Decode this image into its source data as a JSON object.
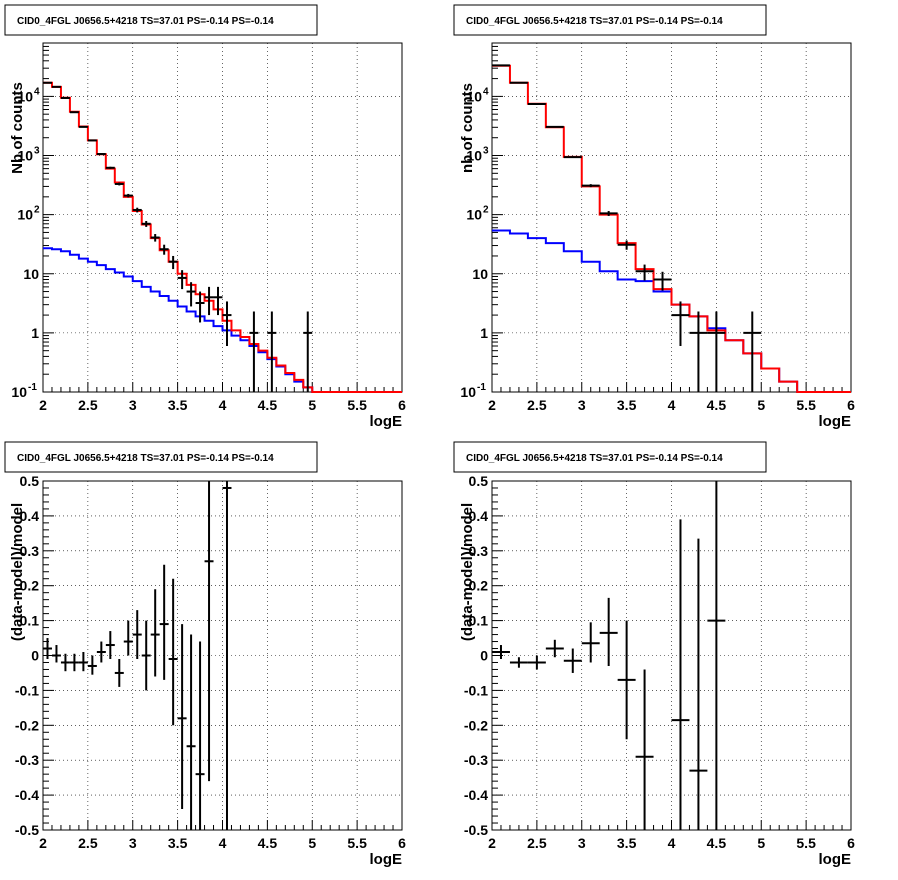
{
  "chart_data": [
    {
      "type": "line",
      "title": "CID0_4FGL J0656.5+4218 TS=37.01 PS=-0.14 PS=-0.14",
      "xlabel": "logE",
      "ylabel": "Nb of counts",
      "log_y": true,
      "xlim": [
        2,
        6
      ],
      "ylim": [
        0.1,
        80000
      ],
      "grid": true,
      "x_ticks": [
        "2",
        "2.5",
        "3",
        "3.5",
        "4",
        "4.5",
        "5",
        "5.5",
        "6"
      ],
      "y_ticks": [
        {
          "value": 0.1,
          "label": "10",
          "sup": "-1"
        },
        {
          "value": 1,
          "label": "1",
          "sup": ""
        },
        {
          "value": 10,
          "label": "10",
          "sup": ""
        },
        {
          "value": 100,
          "label": "10",
          "sup": "2"
        },
        {
          "value": 1000,
          "label": "10",
          "sup": "3"
        },
        {
          "value": 10000,
          "label": "10",
          "sup": "4"
        }
      ],
      "bin_edges": [
        2.0,
        2.1,
        2.2,
        2.3,
        2.4,
        2.5,
        2.6,
        2.7,
        2.8,
        2.9,
        3.0,
        3.1,
        3.2,
        3.3,
        3.4,
        3.5,
        3.6,
        3.7,
        3.8,
        3.9,
        4.0,
        4.1,
        4.2,
        4.3,
        4.4,
        4.5,
        4.6,
        4.7,
        4.8,
        4.9,
        5.0,
        5.1,
        5.2,
        5.3,
        5.4,
        5.5,
        5.6,
        5.7,
        5.8,
        5.9,
        6.0
      ],
      "series": [
        {
          "color": "#0000ff",
          "values": [
            27,
            26,
            24,
            21,
            18,
            16,
            14,
            12,
            10.5,
            9,
            7.5,
            6,
            5,
            4.2,
            3.5,
            2.8,
            2.3,
            1.9,
            1.6,
            1.3,
            1.1,
            0.9,
            0.75,
            0.6,
            0.47,
            0.36,
            0.27,
            0.2,
            0.15,
            0.12,
            0.1,
            0.1,
            0.1,
            0.1,
            0.1,
            0.1,
            0.1,
            0.1,
            0.1,
            0.1
          ]
        },
        {
          "color": "#ff0000",
          "values": [
            17000,
            14500,
            9500,
            5500,
            3100,
            1800,
            1050,
            600,
            350,
            200,
            115,
            68,
            40,
            25,
            16,
            10,
            6.5,
            4.5,
            3.5,
            2.5,
            1.6,
            1.1,
            0.85,
            0.65,
            0.5,
            0.38,
            0.28,
            0.21,
            0.16,
            0.12,
            0.1,
            0.1,
            0.1,
            0.1,
            0.1,
            0.1,
            0.1,
            0.1,
            0.1,
            0.1
          ]
        }
      ],
      "points": [
        {
          "x": 2.05,
          "y": 17000,
          "xerr": 0.05,
          "lo": 16850,
          "hi": 17150
        },
        {
          "x": 2.15,
          "y": 14500,
          "xerr": 0.05,
          "lo": 14380,
          "hi": 14620
        },
        {
          "x": 2.25,
          "y": 9400,
          "xerr": 0.05,
          "lo": 9300,
          "hi": 9500
        },
        {
          "x": 2.35,
          "y": 5400,
          "xerr": 0.05,
          "lo": 5330,
          "hi": 5470
        },
        {
          "x": 2.45,
          "y": 3050,
          "xerr": 0.05,
          "lo": 2995,
          "hi": 3105
        },
        {
          "x": 2.55,
          "y": 1800,
          "xerr": 0.05,
          "lo": 1758,
          "hi": 1842
        },
        {
          "x": 2.65,
          "y": 1060,
          "xerr": 0.05,
          "lo": 1027,
          "hi": 1093
        },
        {
          "x": 2.75,
          "y": 620,
          "xerr": 0.05,
          "lo": 595,
          "hi": 645
        },
        {
          "x": 2.85,
          "y": 330,
          "xerr": 0.05,
          "lo": 312,
          "hi": 348
        },
        {
          "x": 2.95,
          "y": 210,
          "xerr": 0.05,
          "lo": 196,
          "hi": 224
        },
        {
          "x": 3.05,
          "y": 120,
          "xerr": 0.05,
          "lo": 109,
          "hi": 131
        },
        {
          "x": 3.15,
          "y": 70,
          "xerr": 0.05,
          "lo": 62,
          "hi": 78
        },
        {
          "x": 3.25,
          "y": 41,
          "xerr": 0.05,
          "lo": 35,
          "hi": 47
        },
        {
          "x": 3.35,
          "y": 26,
          "xerr": 0.05,
          "lo": 21,
          "hi": 31
        },
        {
          "x": 3.45,
          "y": 16,
          "xerr": 0.05,
          "lo": 12,
          "hi": 20
        },
        {
          "x": 3.55,
          "y": 8.5,
          "xerr": 0.05,
          "lo": 5.5,
          "hi": 11.5
        },
        {
          "x": 3.65,
          "y": 5,
          "xerr": 0.05,
          "lo": 2.8,
          "hi": 7.2
        },
        {
          "x": 3.75,
          "y": 3.2,
          "xerr": 0.05,
          "lo": 1.5,
          "hi": 5
        },
        {
          "x": 3.85,
          "y": 4,
          "xerr": 0.05,
          "lo": 2,
          "hi": 6
        },
        {
          "x": 3.95,
          "y": 4,
          "xerr": 0.05,
          "lo": 2,
          "hi": 6
        },
        {
          "x": 4.05,
          "y": 2,
          "xerr": 0.05,
          "lo": 0.6,
          "hi": 3.4
        },
        {
          "x": 4.35,
          "y": 1,
          "xerr": 0.05,
          "lo": 0.1,
          "hi": 2.3
        },
        {
          "x": 4.55,
          "y": 1,
          "xerr": 0.05,
          "lo": 0.1,
          "hi": 2.3
        },
        {
          "x": 4.95,
          "y": 1,
          "xerr": 0.05,
          "lo": 0.1,
          "hi": 2.3
        }
      ]
    },
    {
      "type": "line",
      "title": "CID0_4FGL J0656.5+4218 TS=37.01 PS=-0.14 PS=-0.14",
      "xlabel": "logE",
      "ylabel": "nb of counts",
      "log_y": true,
      "xlim": [
        2,
        6
      ],
      "ylim": [
        0.1,
        80000
      ],
      "grid": true,
      "x_ticks": [
        "2",
        "2.5",
        "3",
        "3.5",
        "4",
        "4.5",
        "5",
        "5.5",
        "6"
      ],
      "y_ticks": [
        {
          "value": 0.1,
          "label": "10",
          "sup": "-1"
        },
        {
          "value": 1,
          "label": "1",
          "sup": ""
        },
        {
          "value": 10,
          "label": "10",
          "sup": ""
        },
        {
          "value": 100,
          "label": "10",
          "sup": "2"
        },
        {
          "value": 1000,
          "label": "10",
          "sup": "3"
        },
        {
          "value": 10000,
          "label": "10",
          "sup": "4"
        }
      ],
      "bin_edges": [
        2.0,
        2.2,
        2.4,
        2.6,
        2.8,
        3.0,
        3.2,
        3.4,
        3.6,
        3.8,
        4.0,
        4.2,
        4.4,
        4.6,
        4.8,
        5.0,
        5.2,
        5.4,
        5.6,
        5.8,
        6.0
      ],
      "series": [
        {
          "color": "#0000ff",
          "values": [
            54,
            48,
            40,
            33,
            24,
            16,
            11,
            8,
            7.5,
            5,
            3,
            1.9,
            1.2,
            0.75,
            0.45,
            0.25,
            0.15,
            0.1,
            0.1,
            0.1
          ]
        },
        {
          "color": "#ff0000",
          "values": [
            33000,
            17000,
            7500,
            3000,
            950,
            300,
            100,
            33,
            12,
            5.5,
            3,
            1.9,
            1.1,
            0.75,
            0.45,
            0.25,
            0.15,
            0.1,
            0.1,
            0.1
          ]
        }
      ],
      "points": [
        {
          "x": 2.1,
          "y": 33500,
          "xerr": 0.1,
          "lo": 33300,
          "hi": 33700
        },
        {
          "x": 2.3,
          "y": 17000,
          "xerr": 0.1,
          "lo": 16870,
          "hi": 17130
        },
        {
          "x": 2.5,
          "y": 7450,
          "xerr": 0.1,
          "lo": 7365,
          "hi": 7535
        },
        {
          "x": 2.7,
          "y": 3050,
          "xerr": 0.1,
          "lo": 2995,
          "hi": 3105
        },
        {
          "x": 2.9,
          "y": 940,
          "xerr": 0.1,
          "lo": 910,
          "hi": 970
        },
        {
          "x": 3.1,
          "y": 310,
          "xerr": 0.1,
          "lo": 292,
          "hi": 328
        },
        {
          "x": 3.3,
          "y": 105,
          "xerr": 0.1,
          "lo": 95,
          "hi": 115
        },
        {
          "x": 3.5,
          "y": 31,
          "xerr": 0.1,
          "lo": 25.5,
          "hi": 36.5
        },
        {
          "x": 3.7,
          "y": 11,
          "xerr": 0.1,
          "lo": 7.7,
          "hi": 14.3
        },
        {
          "x": 3.9,
          "y": 8,
          "xerr": 0.1,
          "lo": 5.2,
          "hi": 10.8
        },
        {
          "x": 4.1,
          "y": 2,
          "xerr": 0.1,
          "lo": 0.6,
          "hi": 3.4
        },
        {
          "x": 4.3,
          "y": 1,
          "xerr": 0.1,
          "lo": 0.1,
          "hi": 2.3
        },
        {
          "x": 4.5,
          "y": 1,
          "xerr": 0.1,
          "lo": 0.1,
          "hi": 2.3
        },
        {
          "x": 4.9,
          "y": 1,
          "xerr": 0.1,
          "lo": 0.1,
          "hi": 2.3
        }
      ]
    },
    {
      "type": "scatter",
      "title": "CID0_4FGL J0656.5+4218 TS=37.01 PS=-0.14 PS=-0.14",
      "xlabel": "logE",
      "ylabel": "(data-model)/model",
      "log_y": false,
      "xlim": [
        2,
        6
      ],
      "ylim": [
        -0.5,
        0.5
      ],
      "grid": true,
      "x_ticks": [
        "2",
        "2.5",
        "3",
        "3.5",
        "4",
        "4.5",
        "5",
        "5.5",
        "6"
      ],
      "y_ticks": [
        {
          "value": -0.5,
          "label": "-0.5",
          "sup": ""
        },
        {
          "value": -0.4,
          "label": "-0.4",
          "sup": ""
        },
        {
          "value": -0.3,
          "label": "-0.3",
          "sup": ""
        },
        {
          "value": -0.2,
          "label": "-0.2",
          "sup": ""
        },
        {
          "value": -0.1,
          "label": "-0.1",
          "sup": ""
        },
        {
          "value": 0,
          "label": "0",
          "sup": ""
        },
        {
          "value": 0.1,
          "label": "0.1",
          "sup": ""
        },
        {
          "value": 0.2,
          "label": "0.2",
          "sup": ""
        },
        {
          "value": 0.3,
          "label": "0.3",
          "sup": ""
        },
        {
          "value": 0.4,
          "label": "0.4",
          "sup": ""
        },
        {
          "value": 0.5,
          "label": "0.5",
          "sup": ""
        }
      ],
      "points": [
        {
          "x": 2.05,
          "y": 0.02,
          "xerr": 0.05,
          "lo": -0.01,
          "hi": 0.05
        },
        {
          "x": 2.15,
          "y": 0.0,
          "xerr": 0.05,
          "lo": -0.02,
          "hi": 0.03
        },
        {
          "x": 2.25,
          "y": -0.02,
          "xerr": 0.05,
          "lo": -0.045,
          "hi": 0.005
        },
        {
          "x": 2.35,
          "y": -0.02,
          "xerr": 0.05,
          "lo": -0.045,
          "hi": 0.005
        },
        {
          "x": 2.45,
          "y": -0.02,
          "xerr": 0.05,
          "lo": -0.045,
          "hi": 0.01
        },
        {
          "x": 2.55,
          "y": -0.03,
          "xerr": 0.05,
          "lo": -0.055,
          "hi": 0.0
        },
        {
          "x": 2.65,
          "y": 0.01,
          "xerr": 0.05,
          "lo": -0.02,
          "hi": 0.04
        },
        {
          "x": 2.75,
          "y": 0.03,
          "xerr": 0.05,
          "lo": -0.01,
          "hi": 0.07
        },
        {
          "x": 2.85,
          "y": -0.05,
          "xerr": 0.05,
          "lo": -0.09,
          "hi": -0.01
        },
        {
          "x": 2.95,
          "y": 0.04,
          "xerr": 0.05,
          "lo": 0.0,
          "hi": 0.1
        },
        {
          "x": 3.05,
          "y": 0.06,
          "xerr": 0.05,
          "lo": -0.01,
          "hi": 0.13
        },
        {
          "x": 3.15,
          "y": 0.0,
          "xerr": 0.05,
          "lo": -0.1,
          "hi": 0.1
        },
        {
          "x": 3.25,
          "y": 0.06,
          "xerr": 0.05,
          "lo": -0.06,
          "hi": 0.19
        },
        {
          "x": 3.35,
          "y": 0.09,
          "xerr": 0.05,
          "lo": -0.07,
          "hi": 0.26
        },
        {
          "x": 3.45,
          "y": -0.01,
          "xerr": 0.05,
          "lo": -0.2,
          "hi": 0.22
        },
        {
          "x": 3.55,
          "y": -0.18,
          "xerr": 0.05,
          "lo": -0.44,
          "hi": 0.09
        },
        {
          "x": 3.65,
          "y": -0.26,
          "xerr": 0.05,
          "lo": -0.5,
          "hi": 0.06
        },
        {
          "x": 3.75,
          "y": -0.34,
          "xerr": 0.05,
          "lo": -0.5,
          "hi": 0.04
        },
        {
          "x": 3.85,
          "y": 0.27,
          "xerr": 0.05,
          "lo": -0.36,
          "hi": 0.5
        },
        {
          "x": 4.05,
          "y": 0.48,
          "xerr": 0.05,
          "lo": -0.5,
          "hi": 0.5
        }
      ]
    },
    {
      "type": "scatter",
      "title": "CID0_4FGL J0656.5+4218 TS=37.01 PS=-0.14 PS=-0.14",
      "xlabel": "logE",
      "ylabel": "(data-model)/model",
      "log_y": false,
      "xlim": [
        2,
        6
      ],
      "ylim": [
        -0.5,
        0.5
      ],
      "grid": true,
      "x_ticks": [
        "2",
        "2.5",
        "3",
        "3.5",
        "4",
        "4.5",
        "5",
        "5.5",
        "6"
      ],
      "y_ticks": [
        {
          "value": -0.5,
          "label": "-0.5",
          "sup": ""
        },
        {
          "value": -0.4,
          "label": "-0.4",
          "sup": ""
        },
        {
          "value": -0.3,
          "label": "-0.3",
          "sup": ""
        },
        {
          "value": -0.2,
          "label": "-0.2",
          "sup": ""
        },
        {
          "value": -0.1,
          "label": "-0.1",
          "sup": ""
        },
        {
          "value": 0,
          "label": "0",
          "sup": ""
        },
        {
          "value": 0.1,
          "label": "0.1",
          "sup": ""
        },
        {
          "value": 0.2,
          "label": "0.2",
          "sup": ""
        },
        {
          "value": 0.3,
          "label": "0.3",
          "sup": ""
        },
        {
          "value": 0.4,
          "label": "0.4",
          "sup": ""
        },
        {
          "value": 0.5,
          "label": "0.5",
          "sup": ""
        }
      ],
      "points": [
        {
          "x": 2.1,
          "y": 0.01,
          "xerr": 0.1,
          "lo": -0.01,
          "hi": 0.03
        },
        {
          "x": 2.3,
          "y": -0.02,
          "xerr": 0.1,
          "lo": -0.035,
          "hi": -0.005
        },
        {
          "x": 2.5,
          "y": -0.02,
          "xerr": 0.1,
          "lo": -0.04,
          "hi": 0.0
        },
        {
          "x": 2.7,
          "y": 0.02,
          "xerr": 0.1,
          "lo": -0.005,
          "hi": 0.045
        },
        {
          "x": 2.9,
          "y": -0.015,
          "xerr": 0.1,
          "lo": -0.05,
          "hi": 0.02
        },
        {
          "x": 3.1,
          "y": 0.035,
          "xerr": 0.1,
          "lo": -0.02,
          "hi": 0.095
        },
        {
          "x": 3.3,
          "y": 0.065,
          "xerr": 0.1,
          "lo": -0.03,
          "hi": 0.165
        },
        {
          "x": 3.5,
          "y": -0.07,
          "xerr": 0.1,
          "lo": -0.24,
          "hi": 0.1
        },
        {
          "x": 3.7,
          "y": -0.29,
          "xerr": 0.1,
          "lo": -0.5,
          "hi": -0.04
        },
        {
          "x": 4.1,
          "y": -0.185,
          "xerr": 0.1,
          "lo": -0.5,
          "hi": 0.39
        },
        {
          "x": 4.3,
          "y": -0.33,
          "xerr": 0.1,
          "lo": -0.5,
          "hi": 0.335
        },
        {
          "x": 4.5,
          "y": 0.1,
          "xerr": 0.1,
          "lo": -0.5,
          "hi": 0.5
        }
      ]
    }
  ]
}
